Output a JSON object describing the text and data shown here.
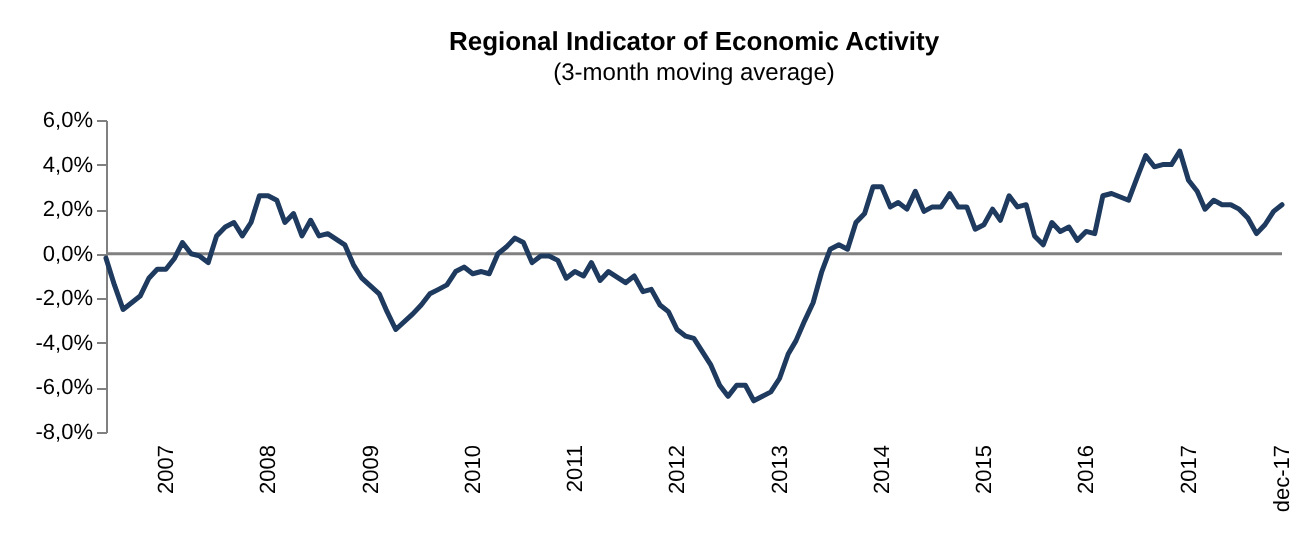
{
  "chart_data": {
    "type": "line",
    "title": "Regional Indicator of Economic Activity",
    "subtitle": "(3-month moving average)",
    "series": [
      {
        "color": "#1f3a5f",
        "x": [
          "2006-06",
          "2006-07",
          "2006-08",
          "2006-10",
          "2006-11",
          "2006-12",
          "2007-01",
          "2007-02",
          "2007-03",
          "2007-04",
          "2007-05",
          "2007-06",
          "2007-07",
          "2007-08",
          "2007-09",
          "2007-10",
          "2007-11",
          "2007-12",
          "2008-01",
          "2008-02",
          "2008-03",
          "2008-04",
          "2008-05",
          "2008-06",
          "2008-07",
          "2008-08",
          "2008-10",
          "2008-11",
          "2008-12",
          "2009-02",
          "2009-03",
          "2009-04",
          "2009-06",
          "2009-07",
          "2009-08",
          "2009-09",
          "2009-10",
          "2009-11",
          "2009-12",
          "2010-01",
          "2010-02",
          "2010-03",
          "2010-04",
          "2010-05",
          "2010-06",
          "2010-07",
          "2010-08",
          "2010-09",
          "2010-10",
          "2010-11",
          "2010-12",
          "2011-01",
          "2011-02",
          "2011-03",
          "2011-04",
          "2011-05",
          "2011-07",
          "2011-08",
          "2011-09",
          "2011-10",
          "2011-11",
          "2011-12",
          "2012-01",
          "2012-02",
          "2012-03",
          "2012-05",
          "2012-06",
          "2012-07",
          "2012-08",
          "2012-09",
          "2012-10",
          "2012-11",
          "2012-12",
          "2013-01",
          "2013-02",
          "2013-03",
          "2013-04",
          "2013-05",
          "2013-06",
          "2013-07",
          "2013-08",
          "2013-09",
          "2013-10",
          "2013-11",
          "2013-12",
          "2014-01",
          "2014-02",
          "2014-03",
          "2014-04",
          "2014-05",
          "2014-06",
          "2014-07",
          "2014-08",
          "2014-09",
          "2014-10",
          "2014-11",
          "2014-12",
          "2015-01",
          "2015-02",
          "2015-03",
          "2015-04",
          "2015-05",
          "2015-06",
          "2015-07",
          "2015-08",
          "2015-09",
          "2015-10",
          "2015-11",
          "2015-12",
          "2016-01",
          "2016-02",
          "2016-03",
          "2016-04",
          "2016-06",
          "2016-07",
          "2016-08",
          "2016-09",
          "2016-10",
          "2016-11",
          "2016-12",
          "2017-01",
          "2017-02",
          "2017-03",
          "2017-04",
          "2017-05",
          "2017-06",
          "2017-07",
          "2017-08",
          "2017-09",
          "2017-10",
          "2017-11",
          "2017-12"
        ],
        "values": [
          -0.2,
          -1.4,
          -2.5,
          -1.9,
          -1.1,
          -0.7,
          -0.7,
          -0.2,
          0.5,
          0.0,
          -0.1,
          -0.4,
          0.8,
          1.2,
          1.4,
          0.8,
          1.4,
          2.6,
          2.6,
          2.4,
          1.4,
          1.8,
          0.8,
          1.5,
          0.8,
          0.9,
          0.4,
          -0.5,
          -1.1,
          -1.8,
          -2.6,
          -3.4,
          -2.7,
          -2.3,
          -1.8,
          -1.6,
          -1.4,
          -0.8,
          -0.6,
          -0.9,
          -0.8,
          -0.9,
          0.0,
          0.3,
          0.7,
          0.5,
          -0.4,
          -0.1,
          -0.1,
          -0.3,
          -1.1,
          -0.8,
          -1.0,
          -0.4,
          -1.2,
          -0.8,
          -1.3,
          -1.0,
          -1.7,
          -1.6,
          -2.3,
          -2.6,
          -3.4,
          -3.7,
          -3.8,
          -5.0,
          -5.9,
          -6.4,
          -5.9,
          -5.9,
          -6.6,
          -6.4,
          -6.2,
          -5.6,
          -4.5,
          -3.9,
          -3.0,
          -2.2,
          -0.8,
          0.2,
          0.4,
          0.2,
          1.4,
          1.8,
          3.0,
          3.0,
          2.1,
          2.3,
          2.0,
          2.8,
          1.9,
          2.1,
          2.1,
          2.7,
          2.1,
          2.1,
          1.1,
          1.3,
          2.0,
          1.5,
          2.6,
          2.1,
          2.2,
          0.8,
          0.4,
          1.4,
          1.0,
          1.2,
          0.6,
          1.0,
          0.9,
          2.6,
          2.7,
          2.4,
          3.4,
          4.4,
          3.9,
          4.0,
          4.0,
          4.6,
          3.3,
          2.8,
          2.0,
          2.4,
          2.2,
          2.2,
          2.0,
          1.6,
          0.9,
          1.3,
          1.9,
          2.2
        ]
      }
    ],
    "xlim": [
      "2006-06",
      "2017-12"
    ],
    "xticks": [
      {
        "value": "2007-01",
        "label": "2007"
      },
      {
        "value": "2008-01",
        "label": "2008"
      },
      {
        "value": "2009-01",
        "label": "2009"
      },
      {
        "value": "2010-01",
        "label": "2010"
      },
      {
        "value": "2011-01",
        "label": "2011"
      },
      {
        "value": "2012-01",
        "label": "2012"
      },
      {
        "value": "2013-01",
        "label": "2013"
      },
      {
        "value": "2014-01",
        "label": "2014"
      },
      {
        "value": "2015-01",
        "label": "2015"
      },
      {
        "value": "2016-01",
        "label": "2016"
      },
      {
        "value": "2017-01",
        "label": "2017"
      },
      {
        "value": "2017-12",
        "label": "dec-17"
      }
    ],
    "ylim": [
      -8,
      6
    ],
    "yticks": [
      {
        "value": -8,
        "label": "-8,0%"
      },
      {
        "value": -6,
        "label": "-6,0%"
      },
      {
        "value": -4,
        "label": "-4,0%"
      },
      {
        "value": -2,
        "label": "-2,0%"
      },
      {
        "value": 0,
        "label": "0,0%"
      },
      {
        "value": 2,
        "label": "2,0%"
      },
      {
        "value": 4,
        "label": "4,0%"
      },
      {
        "value": 6,
        "label": "6,0%"
      }
    ],
    "ref_lines": [
      {
        "axis": "y",
        "value": 0,
        "color": "#808080"
      }
    ],
    "grid": false,
    "marker": "none",
    "line_style": "solid"
  }
}
